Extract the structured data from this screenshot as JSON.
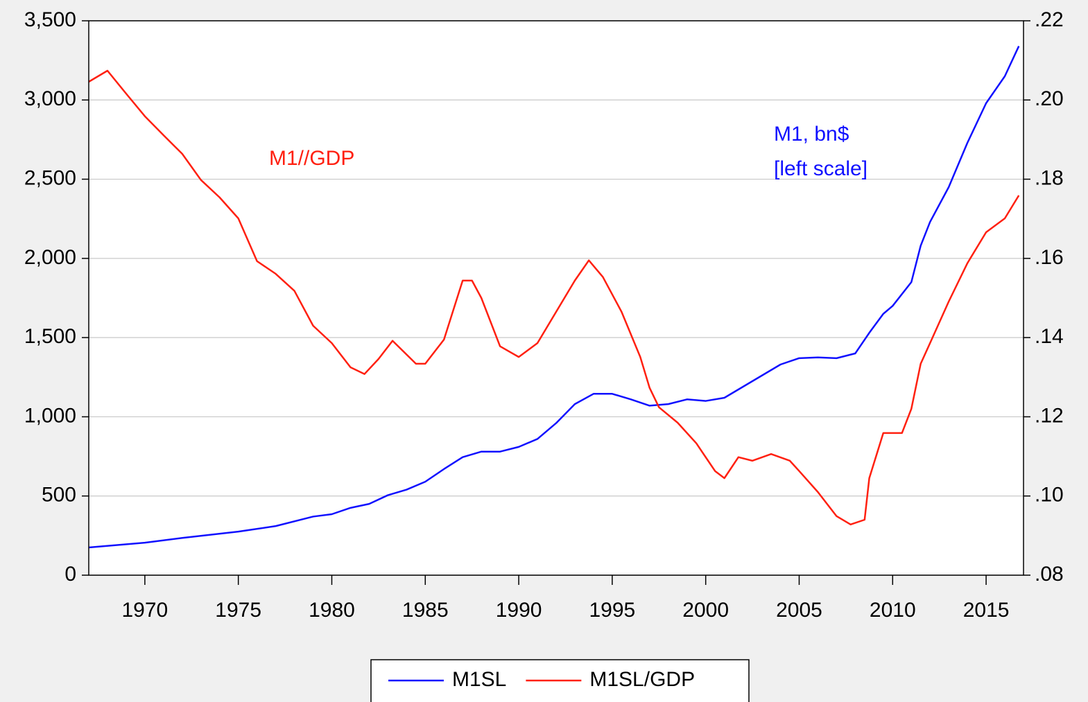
{
  "chart_data": {
    "type": "line",
    "annotations": [
      {
        "text": "M1//GDP",
        "color": "#ff2010"
      },
      {
        "text": "M1, bn$",
        "color": "#1010ff"
      },
      {
        "text": "[left scale]",
        "color": "#1010ff"
      }
    ],
    "xlim": [
      1967,
      2017
    ],
    "xticks": [
      1970,
      1975,
      1980,
      1985,
      1990,
      1995,
      2000,
      2005,
      2010,
      2015
    ],
    "ylim": [
      0,
      3500
    ],
    "yticks": [
      0,
      500,
      {
        "value": 1000,
        "label": "1,000"
      },
      {
        "value": 1500,
        "label": "1,500"
      },
      {
        "value": 2000,
        "label": "2,000"
      },
      {
        "value": 2500,
        "label": "2,500"
      },
      {
        "value": 3000,
        "label": "3,000"
      },
      {
        "value": 3500,
        "label": "3,500"
      }
    ],
    "y2lim": [
      0.08,
      0.22
    ],
    "y2ticks": [
      {
        "value": 0.08,
        "label": ".08"
      },
      {
        "value": 0.1,
        "label": ".10"
      },
      {
        "value": 0.12,
        "label": ".12"
      },
      {
        "value": 0.14,
        "label": ".14"
      },
      {
        "value": 0.16,
        "label": ".16"
      },
      {
        "value": 0.18,
        "label": ".18"
      },
      {
        "value": 0.2,
        "label": ".20"
      },
      {
        "value": 0.22,
        "label": ".22"
      }
    ],
    "grid": true,
    "series": [
      {
        "name": "M1SL",
        "color": "#1010ff",
        "axis": "y",
        "x": [
          1967,
          1970,
          1972,
          1975,
          1977,
          1979,
          1980,
          1981,
          1982,
          1983,
          1984,
          1985,
          1986,
          1987,
          1988,
          1989,
          1990,
          1991,
          1992,
          1993,
          1994,
          1995,
          1996,
          1997,
          1998,
          1999,
          2000,
          2001,
          2002,
          2003,
          2004,
          2005,
          2006,
          2007,
          2008,
          2008.75,
          2009.5,
          2010,
          2011,
          2011.5,
          2012,
          2013,
          2014,
          2015,
          2016,
          2016.75
        ],
        "values": [
          175,
          205,
          235,
          275,
          310,
          370,
          385,
          425,
          450,
          505,
          540,
          590,
          670,
          745,
          780,
          780,
          810,
          860,
          960,
          1080,
          1145,
          1145,
          1110,
          1070,
          1080,
          1110,
          1100,
          1120,
          1190,
          1260,
          1330,
          1370,
          1375,
          1370,
          1400,
          1530,
          1650,
          1700,
          1850,
          2080,
          2230,
          2450,
          2730,
          2980,
          3150,
          3340
        ]
      },
      {
        "name": "M1SL/GDP",
        "color": "#ff2010",
        "axis": "y2",
        "x": [
          1967,
          1968,
          1969,
          1970,
          1971,
          1972,
          1973,
          1974,
          1975,
          1976,
          1977,
          1978,
          1979,
          1980,
          1981,
          1981.75,
          1982.5,
          1983.25,
          1984.5,
          1985,
          1986,
          1987,
          1987.5,
          1988,
          1989,
          1990,
          1991,
          1992,
          1993,
          1993.75,
          1994.5,
          1995.5,
          1996.5,
          1997,
          1997.5,
          1998.5,
          1999.5,
          2000.5,
          2001,
          2001.75,
          2002.5,
          2003.5,
          2004.5,
          2005,
          2006,
          2007,
          2007.75,
          2008.5,
          2008.75,
          2009.5,
          2010,
          2010.5,
          2011,
          2011.5,
          2012,
          2013,
          2014,
          2015,
          2016,
          2016.75
        ],
        "values": [
          0.2046,
          0.2074,
          0.2016,
          0.1959,
          0.1911,
          0.1864,
          0.1798,
          0.1754,
          0.1701,
          0.1593,
          0.1561,
          0.1518,
          0.143,
          0.1386,
          0.1325,
          0.1308,
          0.1346,
          0.1392,
          0.1334,
          0.1334,
          0.1395,
          0.1544,
          0.1544,
          0.15,
          0.1378,
          0.1351,
          0.1386,
          0.1465,
          0.1544,
          0.1595,
          0.1553,
          0.1465,
          0.1351,
          0.1273,
          0.1224,
          0.1185,
          0.1133,
          0.1063,
          0.1045,
          0.1098,
          0.1089,
          0.1106,
          0.1089,
          0.1063,
          0.101,
          0.0949,
          0.0928,
          0.094,
          0.1045,
          0.1159,
          0.1159,
          0.1159,
          0.122,
          0.1334,
          0.1386,
          0.1491,
          0.1588,
          0.1666,
          0.1701,
          0.1759
        ]
      }
    ]
  }
}
